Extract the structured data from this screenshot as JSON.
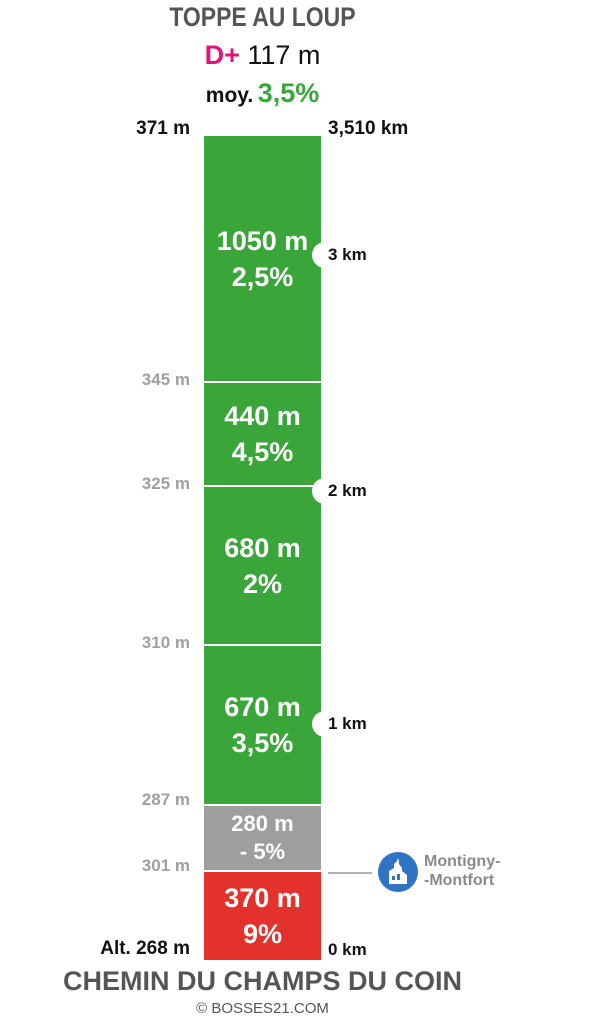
{
  "header": {
    "title": "TOPPE AU LOUP",
    "dplus_label": "D+",
    "dplus_value": "117 m",
    "avg_label": "moy.",
    "avg_value": "3,5%"
  },
  "top": {
    "altitude": "371 m",
    "distance": "3,510 km"
  },
  "segments": [
    {
      "length": "1050 m",
      "grade": "2,5%",
      "color": "#3aa63a"
    },
    {
      "length": "440 m",
      "grade": "4,5%",
      "color": "#3aa63a"
    },
    {
      "length": "680 m",
      "grade": "2%",
      "color": "#3aa63a"
    },
    {
      "length": "670 m",
      "grade": "3,5%",
      "color": "#3aa63a"
    },
    {
      "length": "280 m",
      "grade": "- 5%",
      "color": "#9e9e9e"
    },
    {
      "length": "370 m",
      "grade": "9%",
      "color": "#e3322b"
    }
  ],
  "altitude_marks": [
    "345 m",
    "325 m",
    "310 m",
    "287 m",
    "301 m"
  ],
  "km_marks": [
    "3 km",
    "2 km",
    "1 km"
  ],
  "bottom": {
    "altitude": "Alt. 268 m",
    "distance": "0 km"
  },
  "landmark": {
    "line1": "Montigny-",
    "line2": "-Montfort",
    "icon": "church-icon"
  },
  "footer": {
    "name": "CHEMIN DU CHAMPS DU COIN",
    "copyright": "© BOSSES21.COM"
  }
}
